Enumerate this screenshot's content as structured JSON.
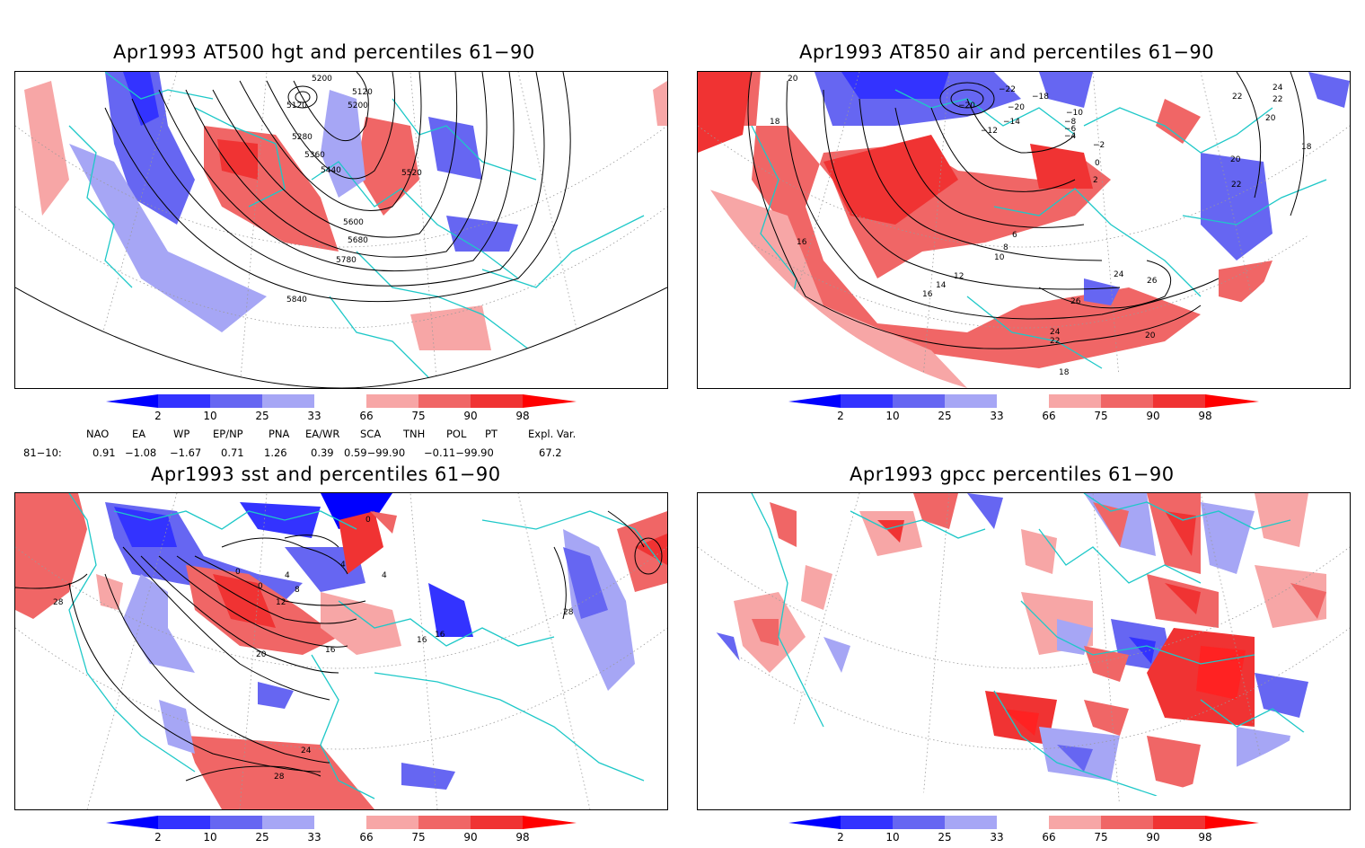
{
  "panels": {
    "top_left": {
      "title": "Apr1993 AT500 hgt and percentiles 61−90",
      "contour_labels": [
        "5200",
        "5120",
        "5120",
        "5200",
        "5280",
        "5360",
        "5440",
        "5520",
        "5600",
        "5680",
        "5780",
        "5840"
      ]
    },
    "top_right": {
      "title": "Apr1993 AT850 air and percentiles 61−90",
      "contour_labels": [
        "20",
        "18",
        "−22",
        "−18",
        "−20",
        "−20",
        "−14",
        "−12",
        "−10",
        "−8",
        "−6",
        "−4",
        "−2",
        "0",
        "2",
        "24",
        "22",
        "22",
        "20",
        "18",
        "20",
        "22",
        "16",
        "6",
        "8",
        "10",
        "12",
        "14",
        "16",
        "24",
        "26",
        "26",
        "24",
        "22",
        "20",
        "18"
      ]
    },
    "bottom_left": {
      "title": "Apr1993 sst and percentiles 61−90",
      "contour_labels": [
        "28",
        "0",
        "0",
        "4",
        "8",
        "12",
        "16",
        "20",
        "24",
        "28",
        "4",
        "16",
        "16",
        "28",
        "0",
        "4"
      ]
    },
    "bottom_right": {
      "title": "Apr1993 gpcc percentiles 61−90"
    }
  },
  "colorbar": {
    "ticks": [
      "2",
      "10",
      "25",
      "33",
      "66",
      "75",
      "90",
      "98"
    ],
    "colors": [
      "#0000ff",
      "#3333ff",
      "#6666f2",
      "#a6a6f5",
      "#ffffff",
      "#f7a6a6",
      "#f06666",
      "#f03333",
      "#ff0000"
    ]
  },
  "indices": {
    "headers": [
      "NAO",
      "EA",
      "WP",
      "EP/NP",
      "PNA",
      "EA/WR",
      "SCA",
      "TNH",
      "POL",
      "PT",
      "Expl. Var."
    ],
    "row_label": "81−10:",
    "values": [
      "0.91",
      "−1.08",
      "−1.67",
      "0.71",
      "1.26",
      "0.39",
      "0.59−99.90",
      "−0.11−99.90",
      "67.2"
    ]
  },
  "colors": {
    "coast": "#1ec8c8",
    "contour": "#000000",
    "grid": "#9a9a9a",
    "blue_dark": "#3333ff",
    "blue_mid": "#6666f2",
    "blue_light": "#a6a6f5",
    "red_light": "#f7a6a6",
    "red_mid": "#f06666",
    "red_dark": "#f03333"
  }
}
